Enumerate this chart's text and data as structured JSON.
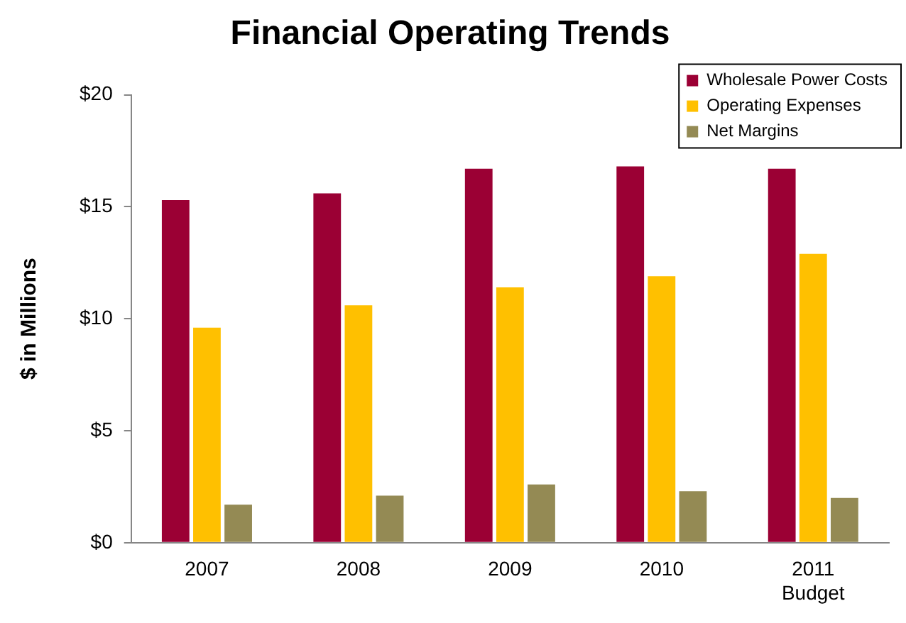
{
  "chart_data": {
    "type": "bar",
    "title": "Financial Operating Trends",
    "ylabel": "$ in Millions",
    "categories": [
      "2007",
      "2008",
      "2009",
      "2010",
      "2011\nBudget"
    ],
    "series": [
      {
        "name": "Wholesale Power Costs",
        "color": "#9b0034",
        "values": [
          15.3,
          15.6,
          16.7,
          16.8,
          16.7
        ]
      },
      {
        "name": "Operating Expenses",
        "color": "#ffc000",
        "values": [
          9.6,
          10.6,
          11.4,
          11.9,
          12.9
        ]
      },
      {
        "name": "Net Margins",
        "color": "#948a54",
        "values": [
          1.7,
          2.1,
          2.6,
          2.3,
          2.0
        ]
      }
    ],
    "ylim": [
      0,
      20
    ],
    "yticks": [
      {
        "value": 0,
        "label": "$0"
      },
      {
        "value": 5,
        "label": "$5"
      },
      {
        "value": 10,
        "label": "$10"
      },
      {
        "value": 15,
        "label": "$15"
      },
      {
        "value": 20,
        "label": "$20"
      }
    ],
    "grid": false,
    "legend": "top right"
  }
}
